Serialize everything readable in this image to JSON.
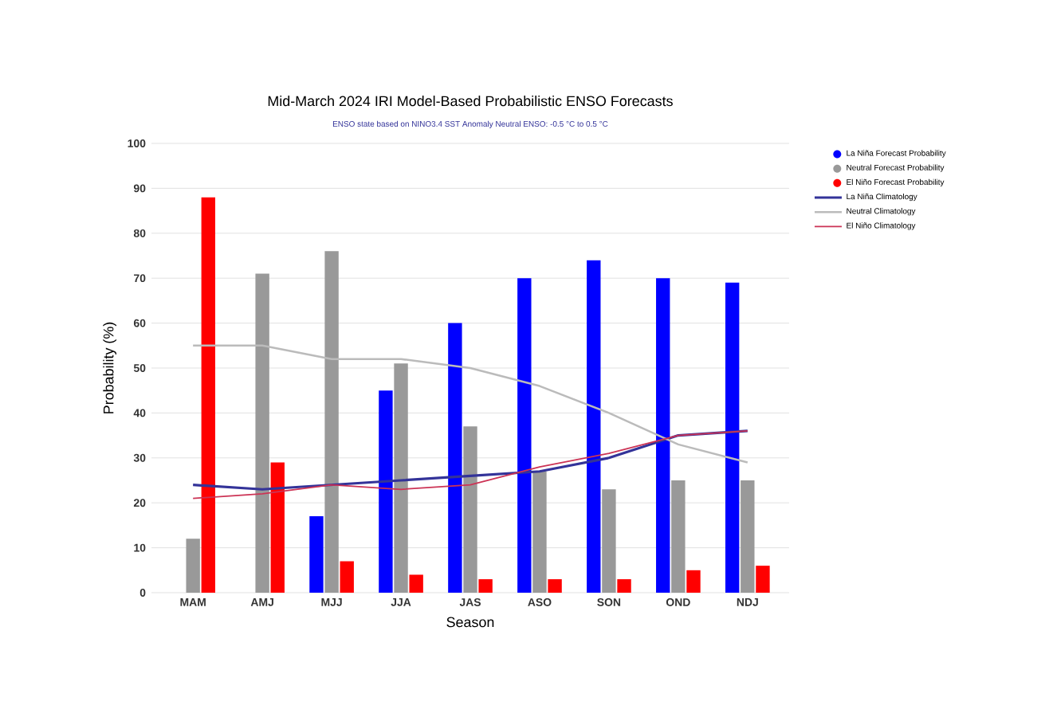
{
  "chart_data": {
    "type": "bar",
    "title": "Mid-March 2024 IRI Model-Based Probabilistic ENSO Forecasts",
    "subtitle": "ENSO state based on NINO3.4 SST Anomaly Neutral ENSO: -0.5 °C to 0.5 °C",
    "xlabel": "Season",
    "ylabel": "Probability (%)",
    "categories": [
      "MAM",
      "AMJ",
      "MJJ",
      "JJA",
      "JAS",
      "ASO",
      "SON",
      "OND",
      "NDJ"
    ],
    "series": [
      {
        "name": "La Niña Forecast Probability",
        "color": "#0000ff",
        "values": [
          null,
          null,
          17,
          45,
          60,
          70,
          74,
          70,
          69
        ]
      },
      {
        "name": "Neutral Forecast Probability",
        "color": "#999999",
        "values": [
          12,
          71,
          76,
          51,
          37,
          27,
          23,
          25,
          25
        ]
      },
      {
        "name": "El Niño Forecast Probability",
        "color": "#ff0000",
        "values": [
          88,
          29,
          7,
          4,
          3,
          3,
          3,
          5,
          6
        ]
      },
      {
        "name": "La Niña Climatology",
        "type": "line",
        "color": "#333399",
        "values": [
          24,
          23,
          24,
          25,
          26,
          27,
          30,
          35,
          36
        ]
      },
      {
        "name": "Neutral Climatology",
        "type": "line",
        "color": "#bbbbbb",
        "values": [
          55,
          55,
          52,
          52,
          50,
          46,
          40,
          33,
          29
        ]
      },
      {
        "name": "El Niño Climatology",
        "type": "line",
        "color": "#cc3355",
        "values": [
          21,
          22,
          24,
          23,
          24,
          28,
          31,
          35,
          36
        ]
      }
    ],
    "ylim": [
      0,
      100
    ],
    "yticks": [
      0,
      10,
      20,
      30,
      40,
      50,
      60,
      70,
      80,
      90,
      100
    ],
    "grid": "y",
    "legend": "right"
  }
}
